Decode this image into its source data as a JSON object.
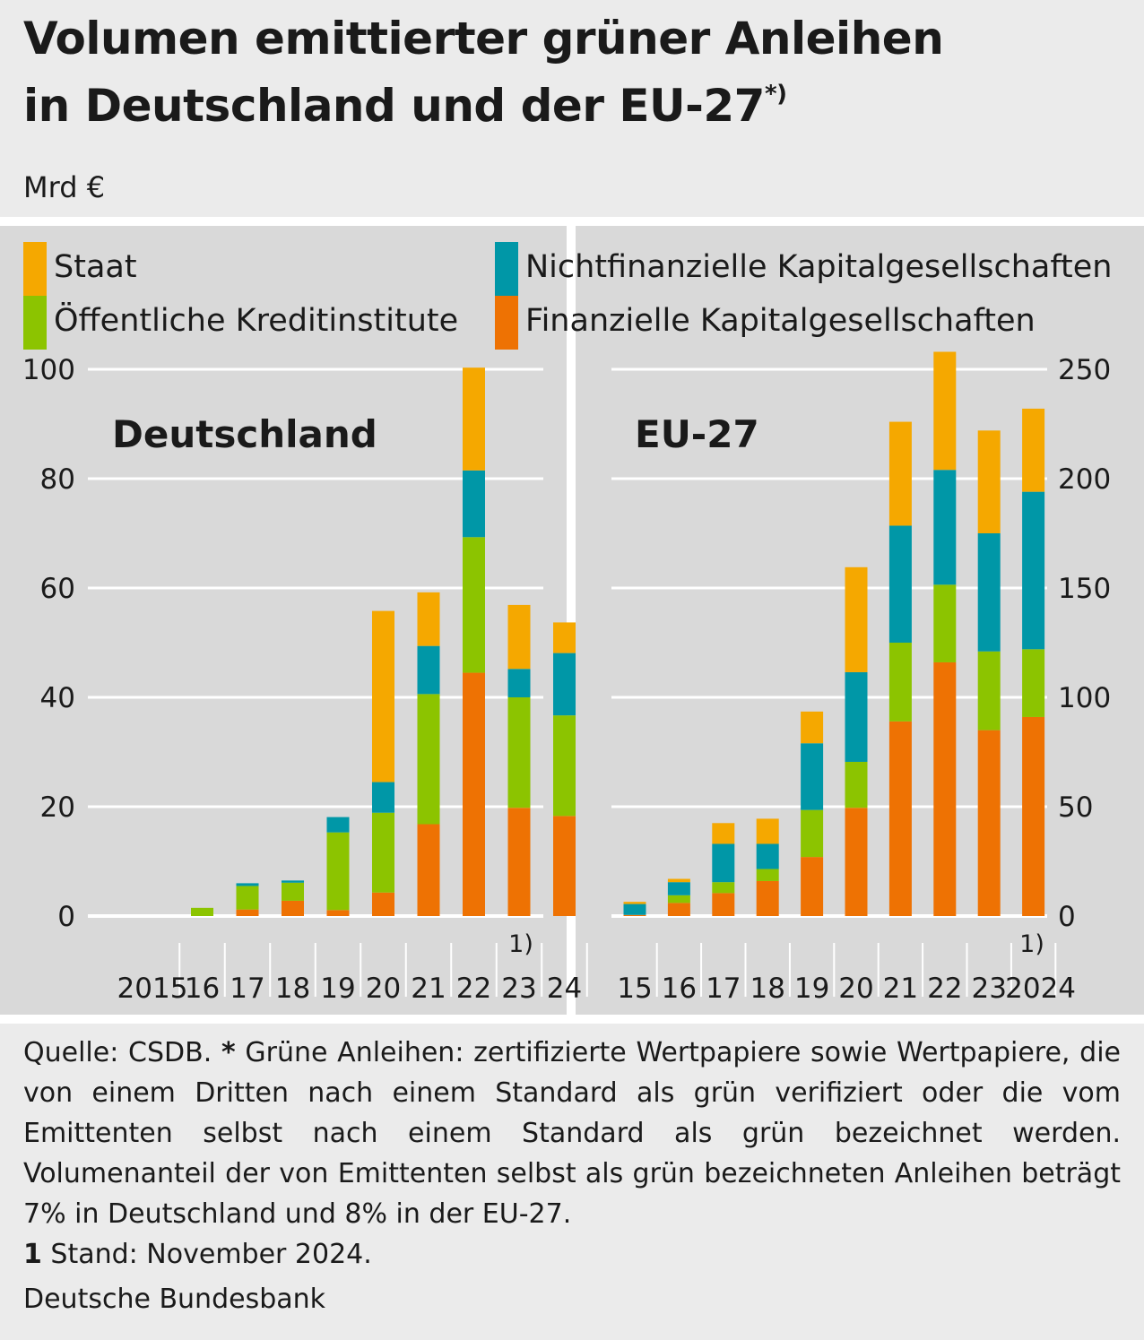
{
  "title_line1": "Volumen emittierter grüner Anleihen",
  "title_line2": "in Deutschland und der EU-27",
  "title_mark": "*)",
  "unit": "Mrd €",
  "colors": {
    "staat": "#f5a800",
    "nichtfinanziell": "#0097a7",
    "oeffentlich": "#8cc400",
    "finanziell": "#ee7203",
    "panel_bg": "#d9d9d9",
    "page_bg": "#ebebeb"
  },
  "legend": [
    {
      "key": "staat",
      "label": "Staat"
    },
    {
      "key": "oeffentlich",
      "label": "Öffentliche Kreditinstitute"
    },
    {
      "key": "nichtfinanziell",
      "label": "Nichtfinanzielle Kapitalgesellschaften"
    },
    {
      "key": "finanziell",
      "label": "Finanzielle Kapitalgesellschaften"
    }
  ],
  "chart_data": [
    {
      "type": "bar",
      "stacked": true,
      "title": "Deutschland",
      "ylim": [
        0,
        100
      ],
      "yticks": [
        "0",
        "20",
        "40",
        "60",
        "80",
        "100"
      ],
      "categories": [
        "2015",
        "16",
        "17",
        "18",
        "19",
        "20",
        "21",
        "22",
        "23",
        "24"
      ],
      "note": "1)",
      "series": [
        {
          "key": "finanziell",
          "values": [
            0,
            0,
            1.2,
            2.8,
            1.1,
            4.3,
            16.8,
            44.5,
            19.8,
            18.3
          ]
        },
        {
          "key": "oeffentlich",
          "values": [
            0,
            1.5,
            4.3,
            3.3,
            14.2,
            14.6,
            23.8,
            24.8,
            20.2,
            18.4
          ]
        },
        {
          "key": "nichtfinanziell",
          "values": [
            0,
            0,
            0.5,
            0.4,
            2.8,
            5.6,
            8.8,
            12.2,
            5.2,
            11.4
          ]
        },
        {
          "key": "staat",
          "values": [
            0,
            0,
            0,
            0,
            0,
            31.3,
            9.8,
            18.8,
            11.7,
            5.6
          ]
        }
      ]
    },
    {
      "type": "bar",
      "stacked": true,
      "title": "EU-27",
      "ylim": [
        0,
        250
      ],
      "yticks": [
        "0",
        "50",
        "100",
        "150",
        "200",
        "250"
      ],
      "categories": [
        "15",
        "16",
        "17",
        "18",
        "19",
        "20",
        "21",
        "22",
        "23",
        "2024"
      ],
      "note": "1)",
      "series": [
        {
          "key": "finanziell",
          "values": [
            0.5,
            6,
            10.5,
            16,
            27,
            49.5,
            89,
            116,
            85,
            91
          ]
        },
        {
          "key": "oeffentlich",
          "values": [
            0,
            3.5,
            5,
            5.5,
            21.5,
            21,
            36,
            35.5,
            36,
            31
          ]
        },
        {
          "key": "nichtfinanziell",
          "values": [
            5,
            6,
            17.5,
            11.5,
            30.5,
            41,
            53.5,
            52.5,
            54,
            72
          ]
        },
        {
          "key": "staat",
          "values": [
            1,
            1.5,
            9.5,
            11.5,
            14.5,
            48,
            47.5,
            54,
            47,
            38
          ]
        }
      ]
    }
  ],
  "footer": {
    "source_prefix": "Quelle: CSDB.",
    "star": "*",
    "star_text": "Grüne Anleihen: zertifizierte Wertpapiere sowie Wertpapiere, die von einem Dritten nach einem Standard als grün verifiziert oder die vom Emittenten selbst nach einem Standard als grün bezeichnet werden. Volumenanteil der von Emittenten selbst als grün bezeichneten Anleihen beträgt 7% in Deutschland und 8% in der EU-27.",
    "one": "1",
    "one_text": "Stand: November 2024."
  },
  "publisher": "Deutsche Bundesbank"
}
